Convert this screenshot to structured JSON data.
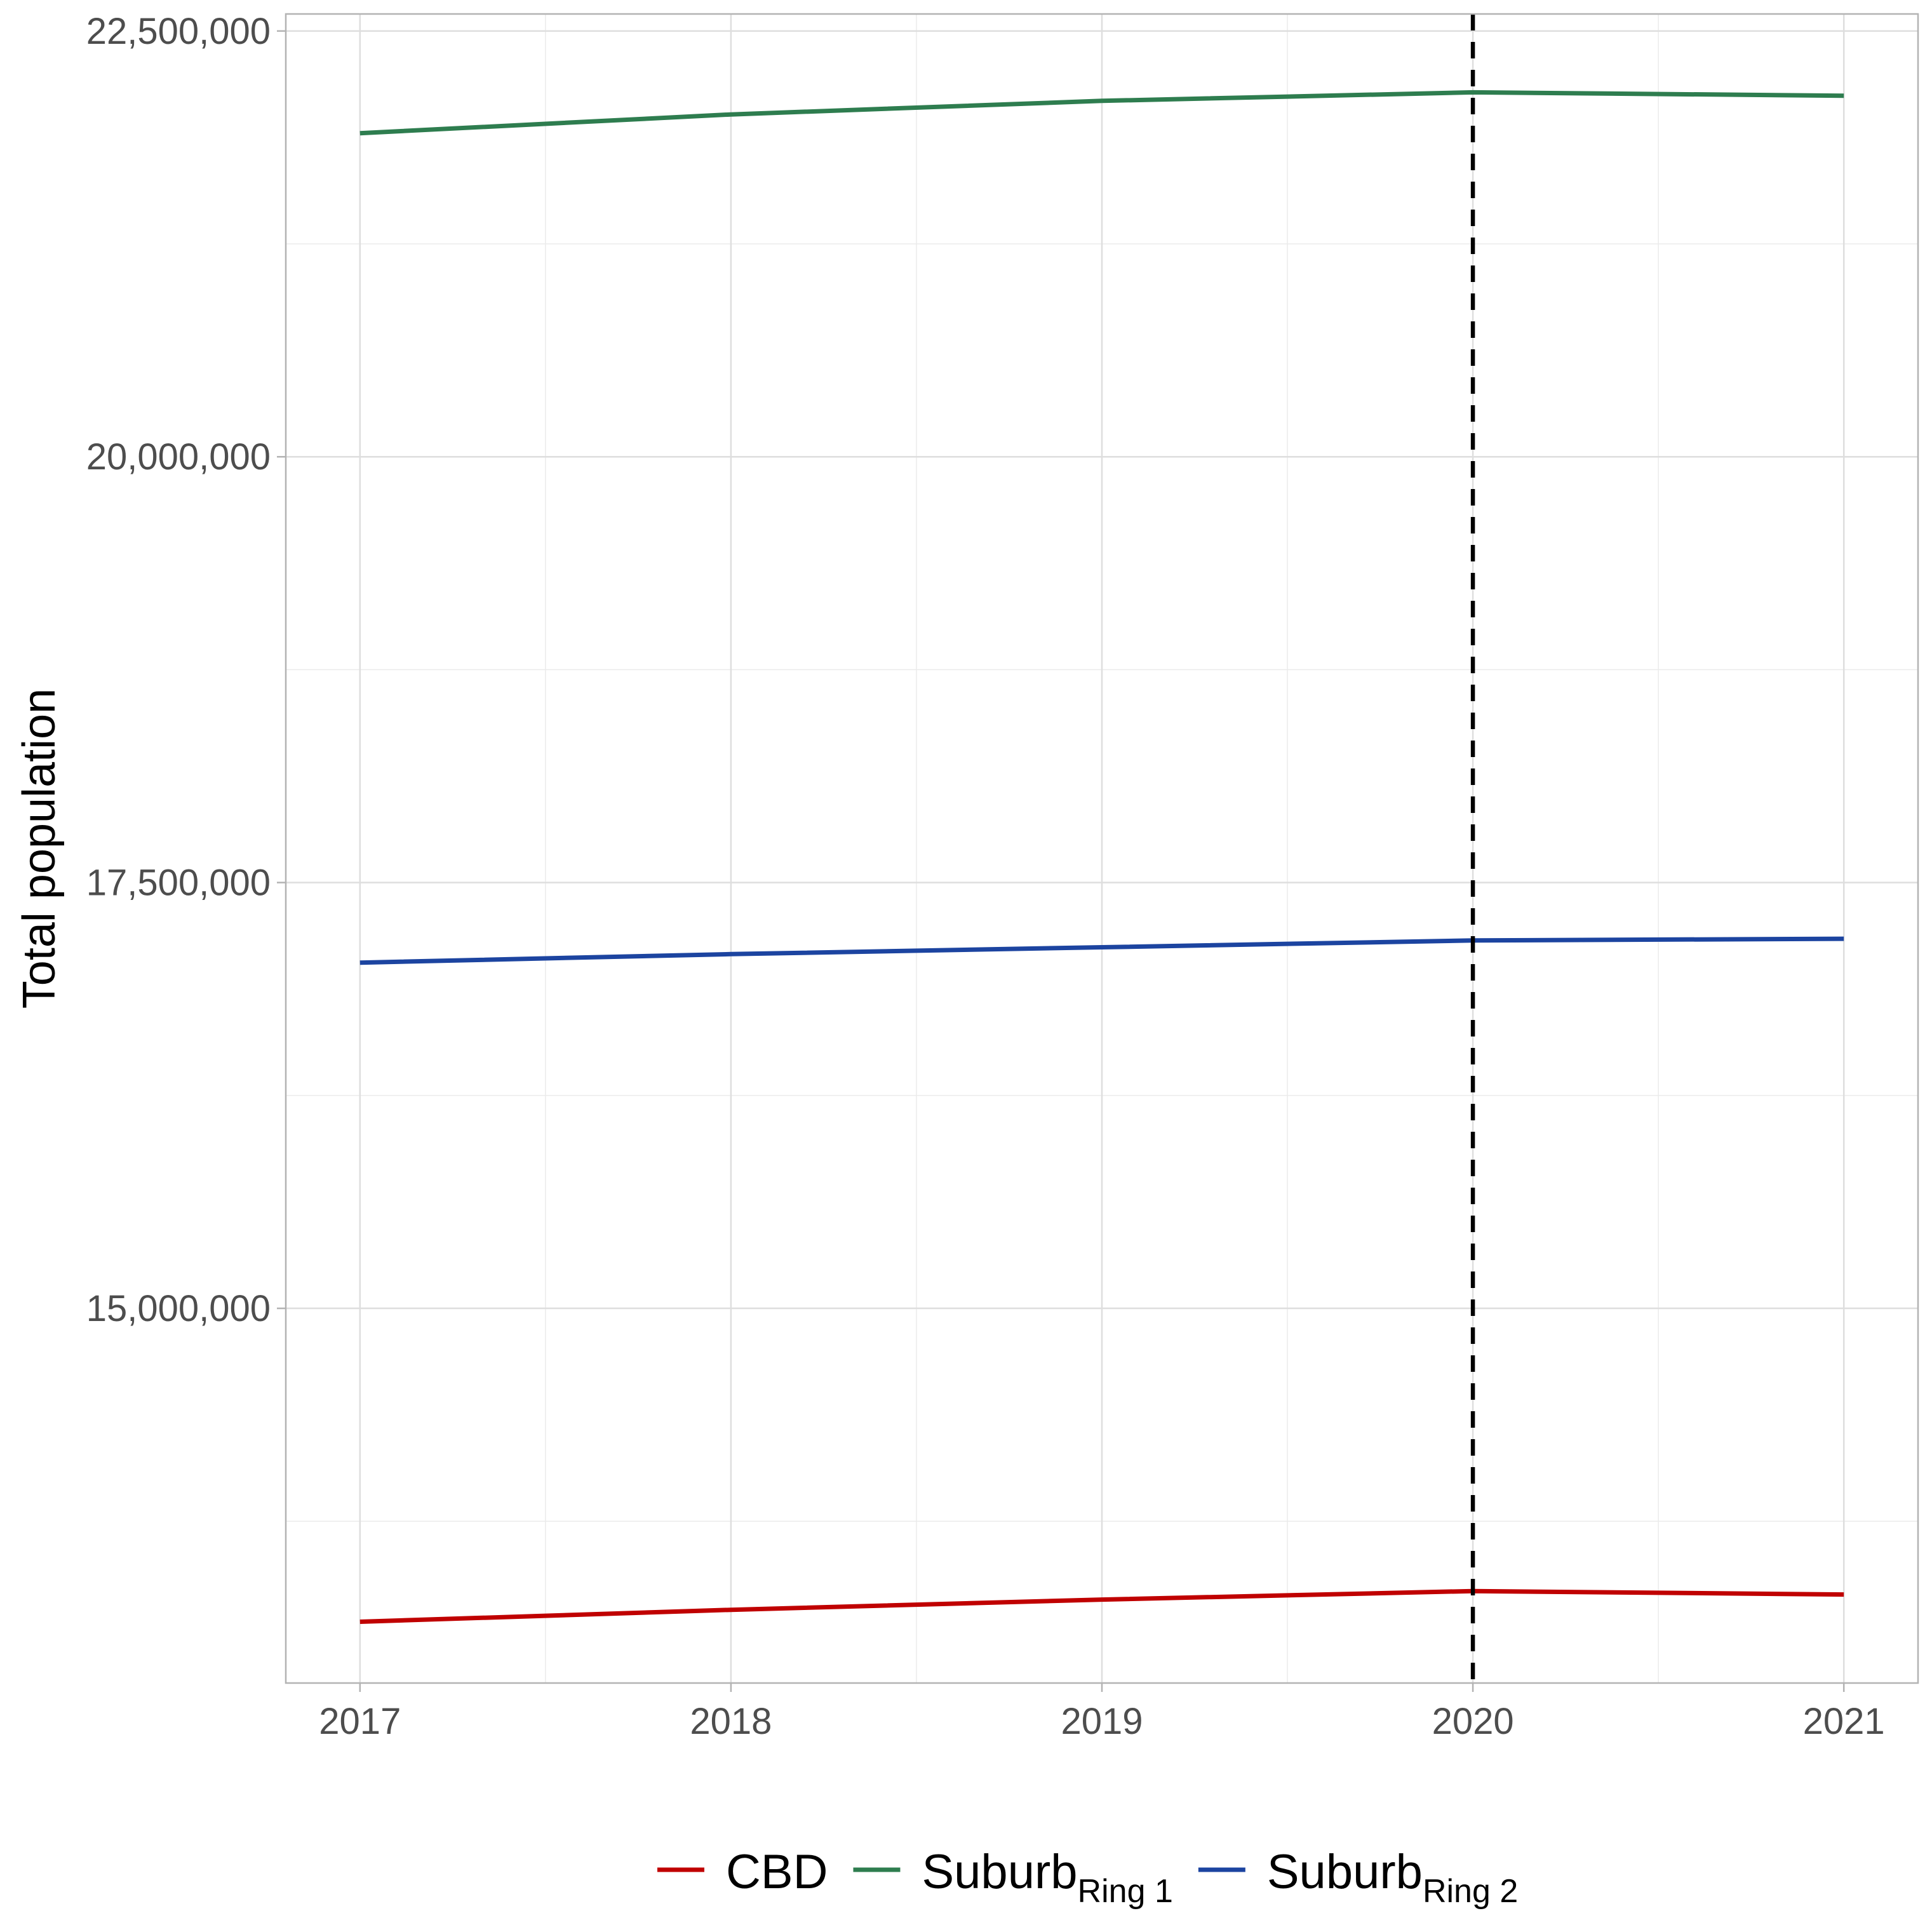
{
  "chart_data": {
    "type": "line",
    "title": "",
    "xlabel": "",
    "ylabel": "Total population",
    "x": [
      2017,
      2018,
      2019,
      2020,
      2021
    ],
    "x_ticks": [
      "2017",
      "2018",
      "2019",
      "2020",
      "2021"
    ],
    "xlim": [
      2016.8,
      2021.2
    ],
    "ylim": [
      12800000,
      22600000
    ],
    "y_ticks": [
      15000000,
      17500000,
      20000000,
      22500000
    ],
    "y_tick_labels": [
      "15,000,000",
      "17,500,000",
      "20,000,000",
      "22,500,000"
    ],
    "grid": true,
    "legend_position": "bottom",
    "vline": {
      "x": 2020,
      "style": "dashed",
      "color": "#000000"
    },
    "series": [
      {
        "name": "CBD",
        "name_sub": "",
        "color": "#c00000",
        "values": [
          13160000,
          13230000,
          13290000,
          13340000,
          13320000
        ]
      },
      {
        "name": "Suburb",
        "name_sub": "Ring 1",
        "color": "#2e7d4f",
        "values": [
          21900000,
          22010000,
          22090000,
          22140000,
          22120000
        ]
      },
      {
        "name": "Suburb",
        "name_sub": "Ring 2",
        "color": "#1c44a0",
        "values": [
          17030000,
          17080000,
          17120000,
          17160000,
          17170000
        ]
      }
    ]
  }
}
